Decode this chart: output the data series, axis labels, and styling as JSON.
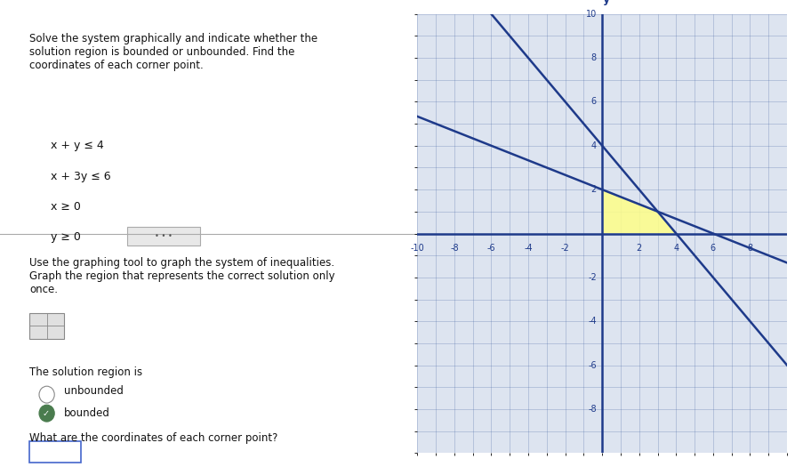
{
  "xlim": [
    -10,
    10
  ],
  "ylim": [
    -10,
    10
  ],
  "xticks": [
    -10,
    -8,
    -6,
    -4,
    -2,
    2,
    4,
    6,
    8
  ],
  "yticks": [
    -2,
    -4,
    -6,
    -8,
    2,
    4,
    6,
    8,
    10
  ],
  "line1_color": "#1e3a8a",
  "line2_color": "#1e3a8a",
  "axis_color": "#1e3a8a",
  "grid_color": "#4060a0",
  "grid_alpha": 0.45,
  "grid_linewidth": 0.4,
  "feasible_region": [
    [
      0,
      0
    ],
    [
      4,
      0
    ],
    [
      3,
      1
    ],
    [
      0,
      2
    ]
  ],
  "feasible_color": "#ffff88",
  "feasible_alpha": 0.85,
  "graph_bg": "#dde4f0",
  "left_bg": "#f5f5f5",
  "figsize": [
    8.94,
    5.25
  ],
  "dpi": 100,
  "title_text": "Solve the system graphically and indicate whether the\nsolution region is bounded or unbounded. Find the\ncoordinates of each corner point.",
  "inequalities": [
    "x + y ≤ 4",
    "x + 3y ≤ 6",
    "x ≥ 0",
    "y ≥ 0"
  ],
  "body_text1": "Use the graphing tool to graph the system of inequalities.\nGraph the region that represents the correct solution only\nonce.",
  "solution_label": "The solution region is",
  "option1": "unbounded",
  "option2": "bounded",
  "question": "What are the coordinates of each corner point?",
  "label_y": "y",
  "tick_fontsize": 7,
  "axis_label_fontsize": 9,
  "line_linewidth": 1.8,
  "axis_linewidth": 1.8
}
